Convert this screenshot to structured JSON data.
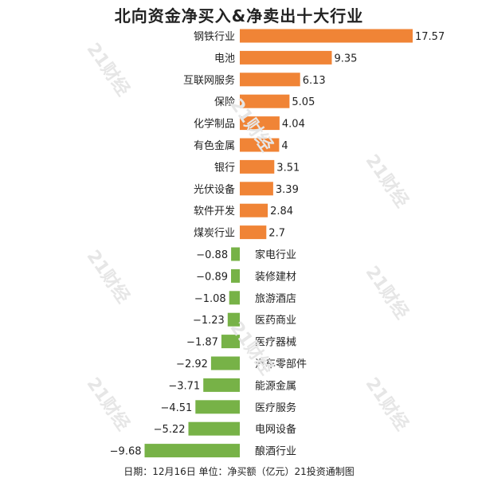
{
  "colors": {
    "positive": "#F08436",
    "negative": "#77B247",
    "text": "#222222",
    "watermark": "#E6E6E6"
  },
  "watermark_text": "21财经",
  "footer": "日期：12月16日 单位：净买额（亿元）21投资通制图",
  "chart_data": {
    "type": "bar",
    "orientation": "horizontal",
    "title": "北向资金净买入&净卖出十大行业",
    "xlabel": "",
    "ylabel": "",
    "xlim": [
      -10,
      18
    ],
    "grid": false,
    "categories": [
      "钢铁行业",
      "电池",
      "互联网服务",
      "保险",
      "化学制品",
      "有色金属",
      "银行",
      "光伏设备",
      "软件开发",
      "煤炭行业",
      "家电行业",
      "装修建材",
      "旅游酒店",
      "医药商业",
      "医疗器械",
      "汽车零部件",
      "能源金属",
      "医疗服务",
      "电网设备",
      "酿酒行业"
    ],
    "labels": [
      "17.57",
      "9.35",
      "6.13",
      "5.05",
      "4.04",
      "4",
      "3.51",
      "3.39",
      "2.84",
      "2.7",
      "−0.88",
      "−0.89",
      "−1.08",
      "−1.23",
      "−1.87",
      "−2.92",
      "−3.71",
      "−4.51",
      "−5.22",
      "−9.68"
    ],
    "values": [
      17.57,
      9.35,
      6.13,
      5.05,
      4.04,
      4,
      3.51,
      3.39,
      2.84,
      2.7,
      -0.88,
      -0.89,
      -1.08,
      -1.23,
      -1.87,
      -2.92,
      -3.71,
      -4.51,
      -5.22,
      -9.68
    ]
  }
}
